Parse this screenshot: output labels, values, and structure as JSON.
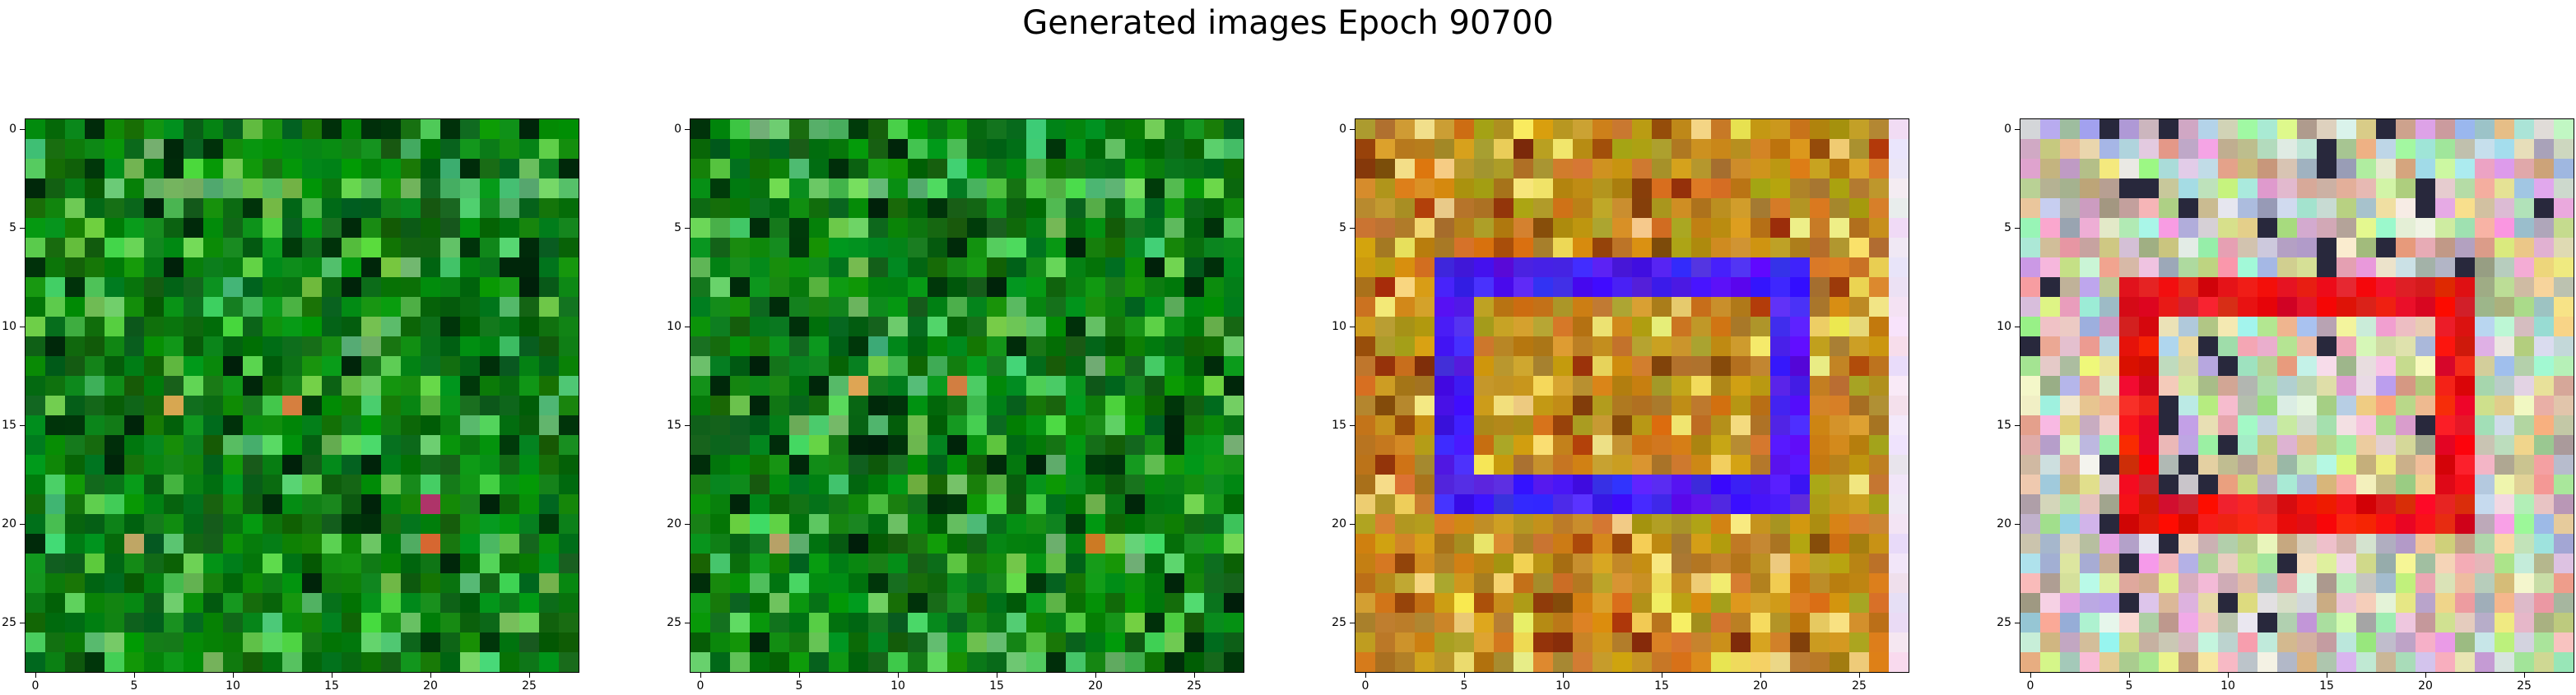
{
  "title": "Generated images Epoch 90700",
  "grid_size": 28,
  "tick_values": [
    0,
    5,
    10,
    15,
    20,
    25
  ],
  "tick_labels": [
    "0",
    "5",
    "10",
    "15",
    "20",
    "25"
  ],
  "images": [
    {
      "name": "image-1",
      "palette": "green",
      "base_color": "#0b7a12",
      "features": [
        {
          "type": "row",
          "row": 3,
          "cols": [
            4,
            27
          ],
          "color": "#5fc25a"
        },
        {
          "type": "spot",
          "row": 14,
          "col": 7,
          "color": "#d8a050"
        },
        {
          "type": "spot",
          "row": 14,
          "col": 13,
          "color": "#d0843a"
        },
        {
          "type": "spot",
          "row": 21,
          "col": 5,
          "color": "#c0a060"
        },
        {
          "type": "spot",
          "row": 21,
          "col": 20,
          "color": "#d0702a"
        },
        {
          "type": "spot",
          "row": 19,
          "col": 20,
          "color": "#b03060"
        }
      ]
    },
    {
      "name": "image-2",
      "palette": "green",
      "base_color": "#0b7a12",
      "features": [
        {
          "type": "row",
          "row": 3,
          "cols": [
            4,
            27
          ],
          "color": "#5fc25a"
        },
        {
          "type": "spot",
          "row": 13,
          "col": 8,
          "color": "#d8a050"
        },
        {
          "type": "spot",
          "row": 13,
          "col": 13,
          "color": "#d0843a"
        },
        {
          "type": "spot",
          "row": 21,
          "col": 4,
          "color": "#c0a060"
        },
        {
          "type": "spot",
          "row": 21,
          "col": 20,
          "color": "#d0702a"
        }
      ]
    },
    {
      "name": "image-3",
      "palette": "amber",
      "base_color": "#c08a20",
      "shape_color": "#4a1ef0",
      "features": [
        {
          "type": "rect",
          "rows": [
            7,
            19
          ],
          "cols": [
            4,
            22
          ],
          "color": "#4a1ef0"
        },
        {
          "type": "col",
          "col": 27,
          "rows": [
            0,
            27
          ],
          "color": "#efe4f4"
        }
      ]
    },
    {
      "name": "image-4",
      "palette": "pastel",
      "base_color": "#d8c8a0",
      "shape_color": "#e51818",
      "features": [
        {
          "type": "rect",
          "rows": [
            8,
            20
          ],
          "cols": [
            5,
            22
          ],
          "color": "#e51818"
        }
      ]
    }
  ]
}
